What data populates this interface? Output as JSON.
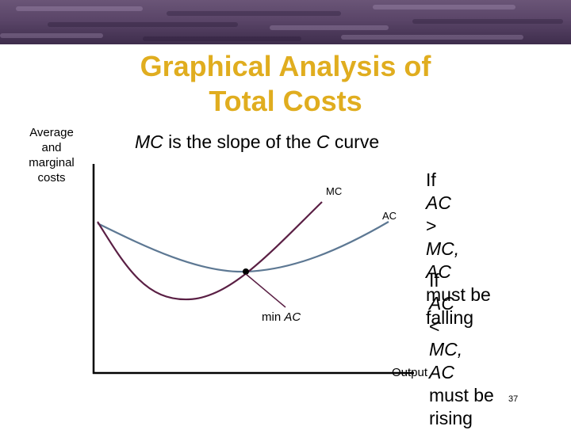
{
  "slide": {
    "title_line1": "Graphical Analysis of",
    "title_line2": "Total Costs",
    "subtitle_part1": "MC",
    "subtitle_part2": " is the slope of the ",
    "subtitle_part3": "C",
    "subtitle_part4": " curve",
    "page_number": "37"
  },
  "axes": {
    "y_label_line1": "Average",
    "y_label_line2": "and",
    "y_label_line3": "marginal",
    "y_label_line4": "costs",
    "x_label": "Output"
  },
  "curves": {
    "mc_label": "MC",
    "ac_label": "AC",
    "min_label_part1": "min ",
    "min_label_part2": "AC"
  },
  "notes": {
    "falling_line1_a": "If ",
    "falling_line1_b": "AC",
    "falling_line1_c": " > ",
    "falling_line1_d": "MC,",
    "falling_line2_a": "AC",
    "falling_line2_b": " must be",
    "falling_line3": "falling",
    "rising_line1_a": "If ",
    "rising_line1_b": "AC",
    "rising_line1_c": " < ",
    "rising_line1_d": "MC,",
    "rising_line2_a": "AC",
    "rising_line2_b": " must be",
    "rising_line3": "rising"
  },
  "colors": {
    "title": "#e0ad1f",
    "mc_curve": "#5a1f44",
    "ac_curve": "#5d7893",
    "axis": "#000000"
  }
}
